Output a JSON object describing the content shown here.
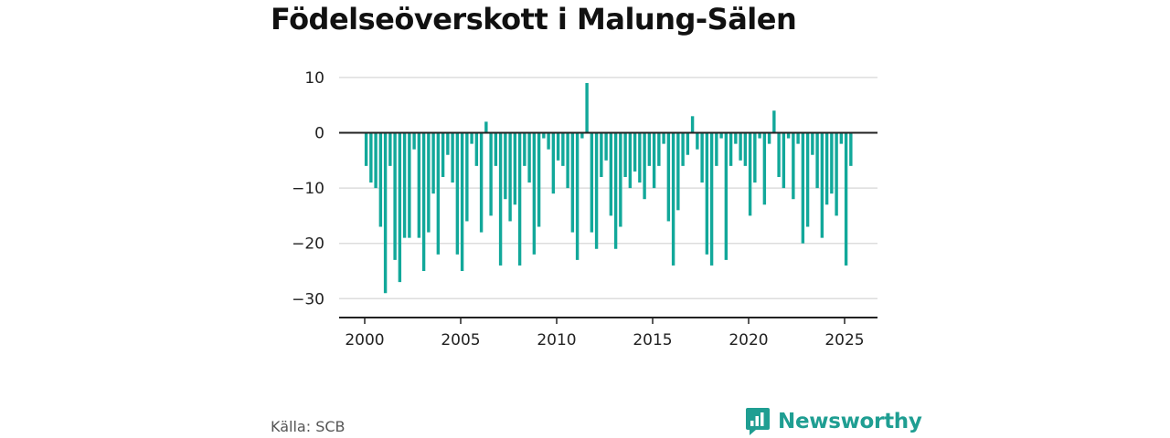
{
  "header": {
    "title": "Födelseöverskott i Malung-Sälen"
  },
  "footer": {
    "source": "Källa: SCB",
    "brand": "Newsworthy"
  },
  "colors": {
    "bar": "#12a89a",
    "brand": "#1f9e92",
    "grid": "#dddddd",
    "axis": "#222222"
  },
  "chart_data": {
    "type": "bar",
    "title": "Födelseöverskott i Malung-Sälen",
    "xlabel": "",
    "ylabel": "",
    "ylim": [
      -35,
      10
    ],
    "xlim": [
      2000,
      2025.75
    ],
    "grid": true,
    "yticks": [
      10,
      0,
      -10,
      -20,
      -30
    ],
    "ytick_labels": [
      "10",
      "0",
      "−10",
      "−20",
      "−30"
    ],
    "xticks": [
      2000,
      2005,
      2010,
      2015,
      2020,
      2025
    ],
    "xtick_labels": [
      "2000",
      "2005",
      "2010",
      "2015",
      "2020",
      "2025"
    ],
    "frequency": "quarterly",
    "start": "2000 Q1",
    "values": [
      -6,
      -9,
      -10,
      -17,
      -29,
      -6,
      -23,
      -27,
      -19,
      -19,
      -3,
      -19,
      -25,
      -18,
      -11,
      -22,
      -8,
      -4,
      -9,
      -22,
      -25,
      -16,
      -2,
      -6,
      -18,
      2,
      -15,
      -6,
      -24,
      -12,
      -16,
      -13,
      -24,
      -6,
      -9,
      -22,
      -17,
      -1,
      -3,
      -11,
      -5,
      -6,
      -10,
      -18,
      -23,
      -1,
      9,
      -18,
      -21,
      -8,
      -5,
      -15,
      -21,
      -17,
      -8,
      -10,
      -7,
      -9,
      -12,
      -6,
      -10,
      -6,
      -2,
      -16,
      -24,
      -14,
      -6,
      -4,
      3,
      -3,
      -9,
      -22,
      -24,
      -6,
      -1,
      -23,
      -6,
      -2,
      -5,
      -6,
      -15,
      -9,
      -1,
      -13,
      -2,
      4,
      -8,
      -10,
      -1,
      -12,
      -2,
      -20,
      -17,
      -4,
      -10,
      -19,
      -13,
      -11,
      -15,
      -2,
      -24,
      -6
    ]
  }
}
